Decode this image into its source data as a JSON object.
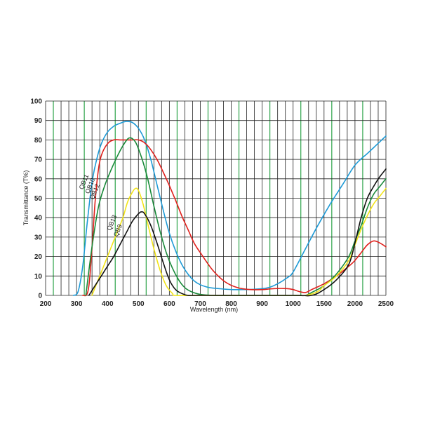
{
  "chart_data": {
    "type": "line",
    "xlabel": "Wavelength (nm)",
    "ylabel": "Transmittance (T%)",
    "xticks": [
      "200",
      "300",
      "400",
      "500",
      "600",
      "700",
      "800",
      "900",
      "1000",
      "1500",
      "2000",
      "2500"
    ],
    "yticks": [
      "0",
      "10",
      "20",
      "30",
      "40",
      "50",
      "60",
      "70",
      "80",
      "90",
      "100"
    ],
    "ylim": [
      0,
      100
    ],
    "grid": true,
    "grid_minor_color": "#222222",
    "grid_major_color": "#1a9b3a",
    "series": [
      {
        "name": "QB11",
        "color": "#1e9ad6",
        "x": [
          290,
          305,
          320,
          335,
          350,
          365,
          380,
          400,
          420,
          440,
          460,
          480,
          500,
          520,
          540,
          560,
          580,
          600,
          620,
          640,
          660,
          680,
          700,
          730,
          760,
          800,
          840,
          880,
          920,
          950,
          980,
          1000,
          1200,
          1400,
          1600,
          1800,
          2000,
          2200,
          2300,
          2400,
          2500
        ],
        "y": [
          0,
          2,
          15,
          38,
          58,
          70,
          78,
          84,
          87,
          88.5,
          89.5,
          89,
          86,
          80,
          70,
          57,
          44,
          32,
          23,
          16,
          11,
          7.5,
          5.5,
          4,
          3.5,
          3,
          3,
          3.2,
          4,
          6,
          9,
          12,
          24,
          36,
          47,
          57,
          67,
          73,
          76,
          79,
          82
        ]
      },
      {
        "name": "QB10",
        "color": "#e0201c",
        "x": [
          320,
          340,
          360,
          370,
          380,
          400,
          420,
          440,
          460,
          480,
          500,
          520,
          540,
          560,
          580,
          600,
          620,
          640,
          660,
          680,
          700,
          740,
          780,
          820,
          860,
          900,
          940,
          980,
          1000,
          1100,
          1200,
          1300,
          1500,
          1700,
          1900,
          2000,
          2100,
          2200,
          2300,
          2400,
          2500
        ],
        "y": [
          0,
          5,
          48,
          64,
          72,
          78,
          80,
          80,
          80,
          80,
          80,
          78.5,
          75,
          70,
          63.5,
          56.5,
          49,
          41,
          34,
          27,
          22,
          13,
          7,
          4,
          3,
          3,
          3.5,
          3.5,
          3,
          2,
          1.5,
          3,
          6,
          10,
          15,
          18,
          22,
          26,
          28,
          27,
          25
        ]
      },
      {
        "name": "QB12",
        "color": "#1a8a3a",
        "x": [
          330,
          350,
          370,
          390,
          410,
          430,
          450,
          470,
          490,
          510,
          530,
          550,
          570,
          590,
          610,
          630,
          650,
          670,
          700,
          740,
          800,
          1000,
          1100,
          1200,
          1300,
          1500,
          1700,
          1900,
          2000,
          2100,
          2200,
          2300,
          2400,
          2500
        ],
        "y": [
          0,
          25,
          45,
          56,
          64,
          71,
          77,
          81,
          79,
          71,
          60,
          46,
          33,
          22,
          14,
          8,
          4,
          2,
          0.5,
          0,
          0,
          0,
          0,
          0,
          1.5,
          5,
          11,
          20,
          28,
          36,
          45,
          52,
          56,
          60
        ]
      },
      {
        "name": "QB13",
        "color": "#f2e418",
        "x": [
          350,
          370,
          390,
          410,
          430,
          450,
          465,
          480,
          490,
          500,
          515,
          530,
          550,
          570,
          590,
          610,
          620,
          700,
          1000,
          1200,
          1400,
          1500,
          1700,
          1900,
          2000,
          2100,
          2200,
          2300,
          2400,
          2500
        ],
        "y": [
          0,
          8,
          16,
          24,
          32,
          40,
          48,
          53,
          55,
          54,
          47,
          37,
          24,
          13,
          5,
          1,
          0,
          0,
          0,
          0,
          2,
          5,
          10,
          18,
          26,
          34,
          41,
          47,
          51,
          55
        ]
      },
      {
        "name": "QB9",
        "color": "#111111",
        "x": [
          340,
          360,
          380,
          400,
          420,
          440,
          460,
          480,
          500,
          510,
          520,
          540,
          560,
          580,
          600,
          620,
          640,
          660,
          700,
          1000,
          1300,
          1500,
          1700,
          1900,
          2000,
          2100,
          2200,
          2300,
          2400,
          2500
        ],
        "y": [
          0,
          5,
          10,
          15,
          20,
          26,
          32,
          38,
          42,
          43,
          42,
          36,
          27,
          17,
          8,
          3,
          1,
          0,
          0,
          0,
          0,
          3,
          8,
          16,
          27,
          40,
          50,
          56,
          61,
          65
        ]
      }
    ]
  }
}
